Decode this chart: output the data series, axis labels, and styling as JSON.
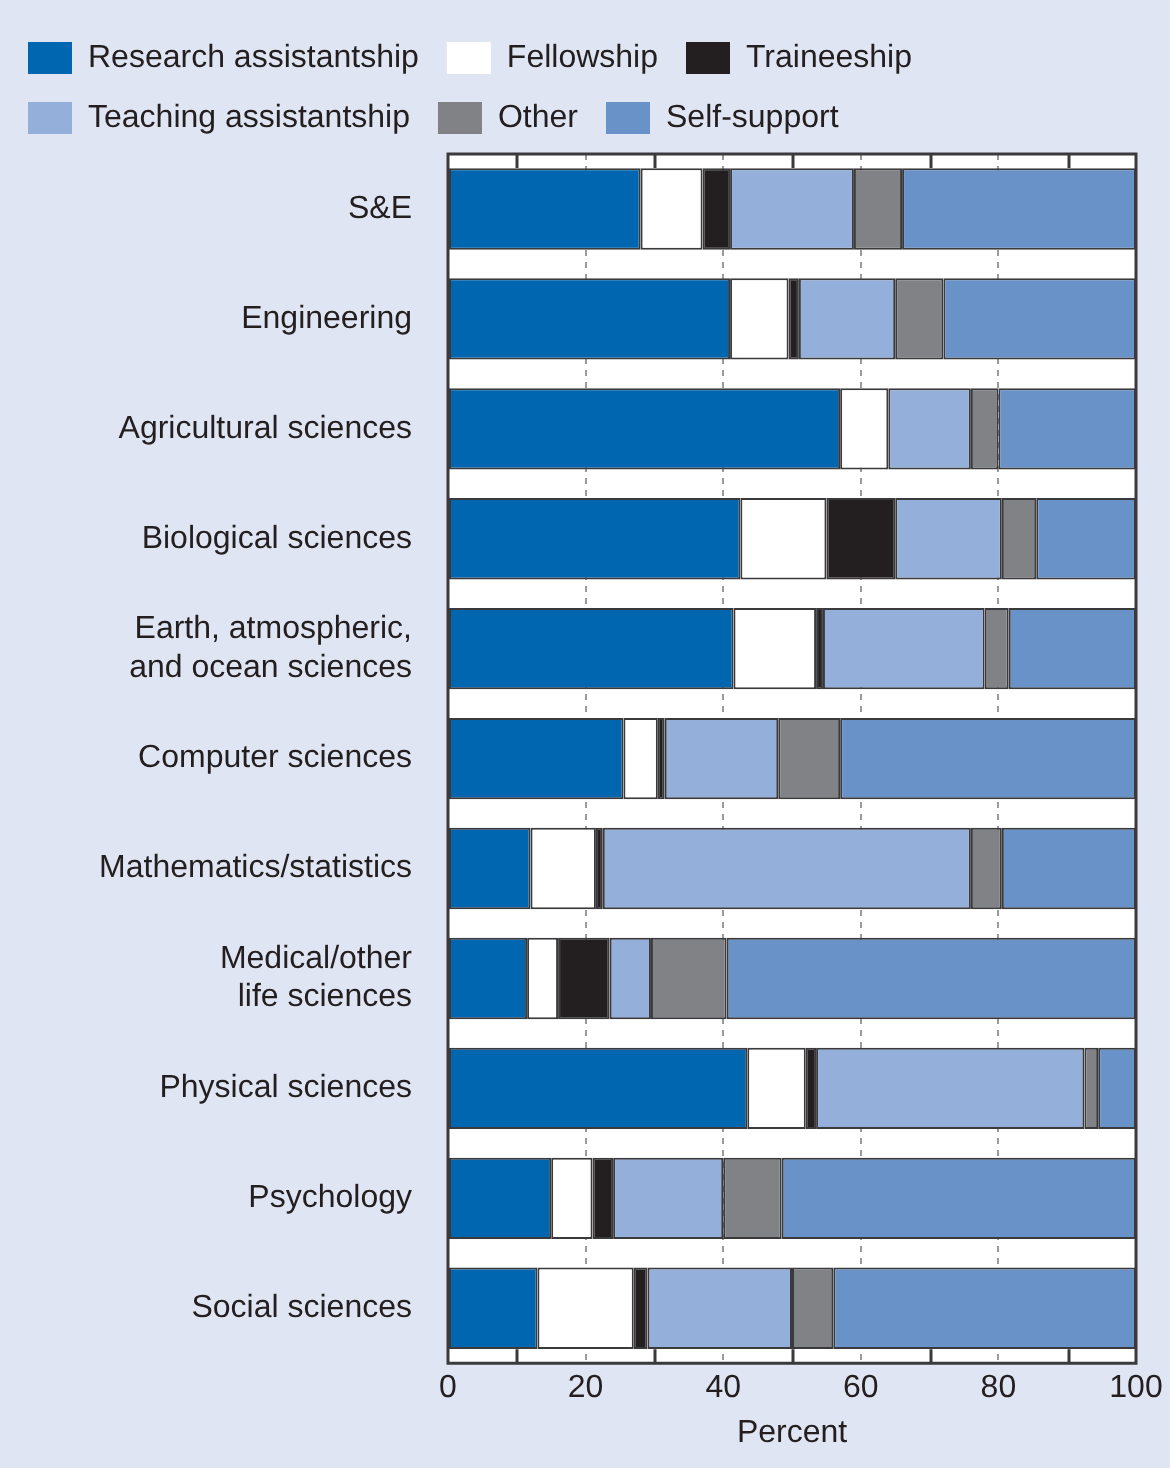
{
  "chart_data": {
    "type": "bar",
    "orientation": "horizontal",
    "stacked": true,
    "categories": [
      "S&E",
      "Engineering",
      "Agricultural sciences",
      "Biological sciences",
      "Earth, atmospheric, and ocean sciences",
      "Computer sciences",
      "Mathematics/statistics",
      "Medical/other life sciences",
      "Physical sciences",
      "Psychology",
      "Social sciences"
    ],
    "series": [
      {
        "name": "Research assistantship",
        "color": "#0066b0",
        "values": [
          28,
          41,
          57,
          42.5,
          41.5,
          25.5,
          12,
          11.5,
          43.5,
          15,
          13
        ]
      },
      {
        "name": "Fellowship",
        "color": "#ffffff",
        "values": [
          9,
          8.5,
          7,
          12.5,
          12,
          5,
          9.5,
          4.5,
          8.5,
          6,
          14
        ]
      },
      {
        "name": "Traineeship",
        "color": "#231f20",
        "values": [
          4,
          1.5,
          0,
          10,
          1,
          1,
          1,
          7.5,
          1.5,
          3,
          2
        ]
      },
      {
        "name": "Teaching assistantship",
        "color": "#94afd9",
        "values": [
          18,
          14,
          12,
          15.5,
          23.5,
          16.5,
          53.5,
          6,
          39,
          16,
          21
        ]
      },
      {
        "name": "Other",
        "color": "#808285",
        "values": [
          7,
          7,
          4,
          5,
          3.5,
          9,
          4.5,
          11,
          2,
          8.5,
          6
        ]
      },
      {
        "name": "Self-support",
        "color": "#6892c8",
        "values": [
          34,
          28,
          20,
          14.5,
          18.5,
          43,
          19.5,
          59.5,
          5.5,
          51.5,
          44
        ]
      }
    ],
    "xlabel": "Percent",
    "xlim": [
      0,
      100
    ],
    "xticks": [
      0,
      {
        "value": 10,
        "label": null
      },
      20,
      {
        "value": 30,
        "label": null
      },
      40,
      {
        "value": 50,
        "label": null
      },
      60,
      {
        "value": 70,
        "label": null
      },
      80,
      {
        "value": 90,
        "label": null
      },
      100
    ],
    "grid": "x",
    "legend": "top"
  }
}
